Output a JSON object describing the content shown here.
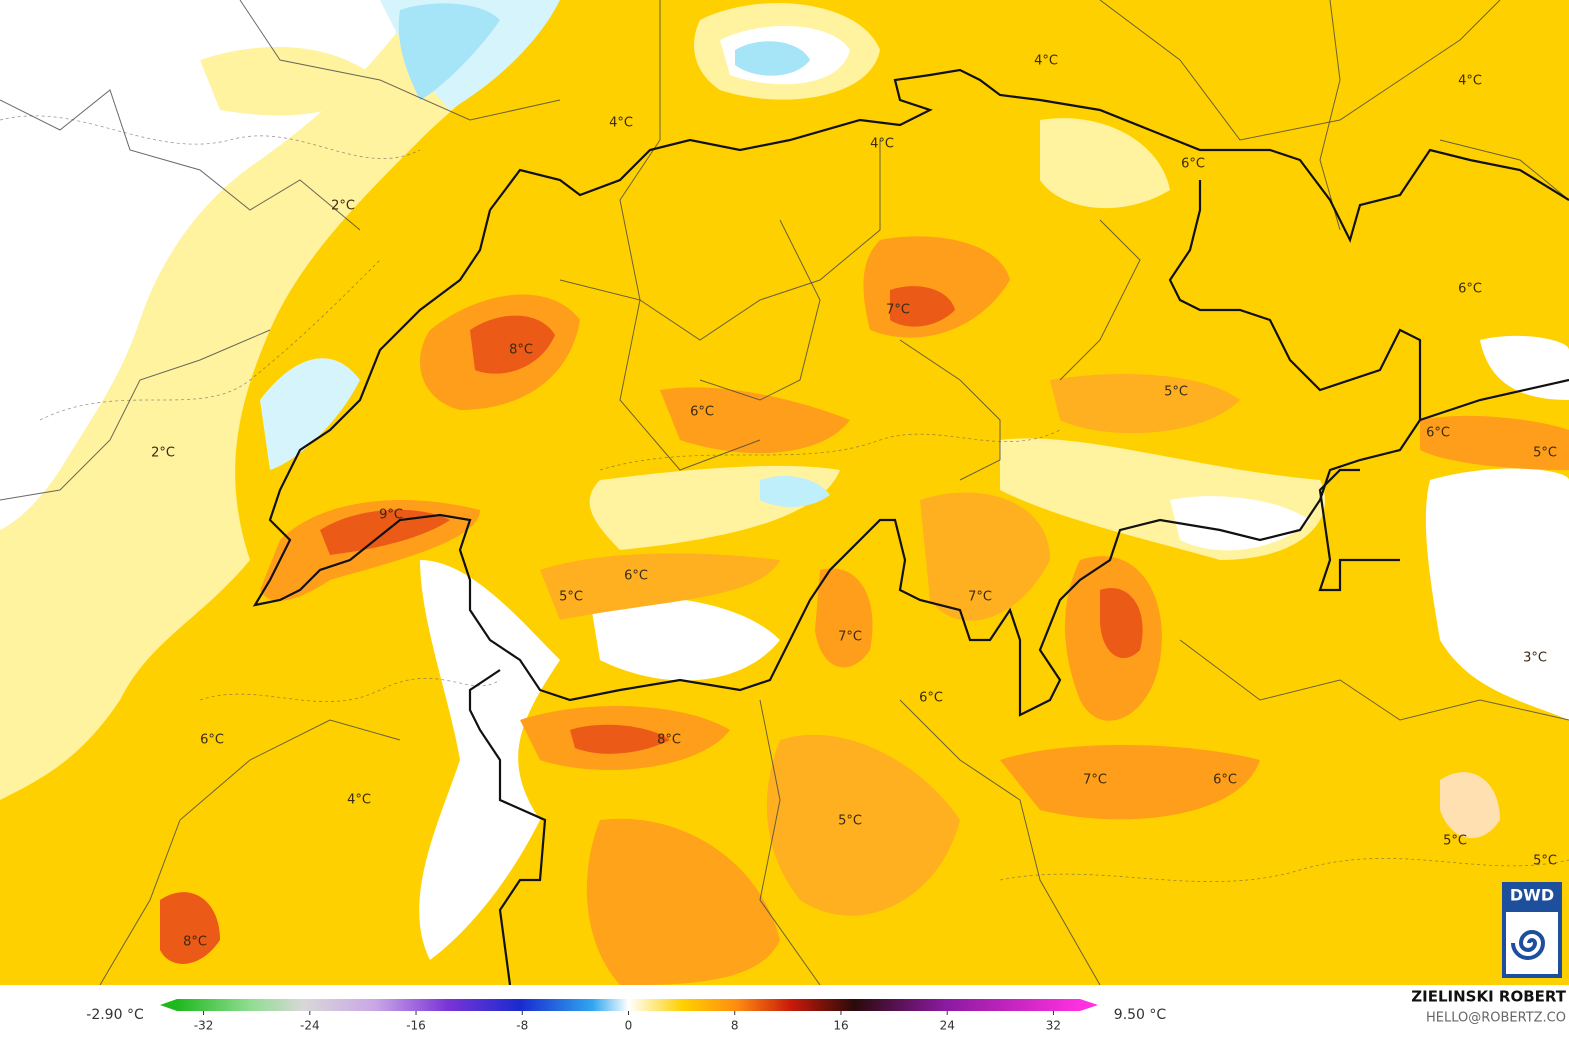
{
  "map": {
    "labels": [
      "4°C",
      "4°C",
      "4°C",
      "4°C",
      "6°C",
      "2°C",
      "6°C",
      "7°C",
      "8°C",
      "5°C",
      "6°C",
      "6°C",
      "5°C",
      "2°C",
      "9°C",
      "6°C",
      "5°C",
      "7°C",
      "7°C",
      "3°C",
      "6°C",
      "6°C",
      "8°C",
      "7°C",
      "6°C",
      "4°C",
      "5°C",
      "5°C",
      "5°C",
      "8°C"
    ]
  },
  "colorbar": {
    "min_label": "-2.90 °C",
    "max_label": "9.50 °C",
    "ticks": [
      -32,
      -24,
      -16,
      -8,
      0,
      8,
      16,
      24,
      32
    ],
    "lim": [
      -34,
      34
    ]
  },
  "credits": {
    "author": "ZIELINSKI ROBERT",
    "contact": "HELLO@ROBERTZ.CO",
    "logo": "DWD"
  }
}
